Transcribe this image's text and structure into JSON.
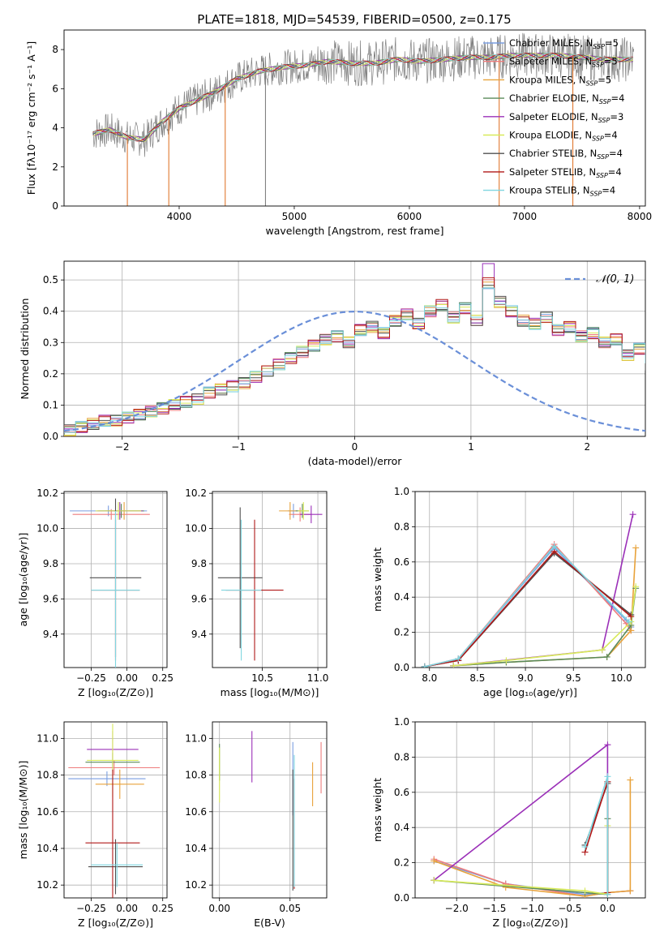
{
  "figure": {
    "title": "PLATE=1818, MJD=54539, FIBERID=0500, z=0.175"
  },
  "colors": {
    "Chabrier MILES": "#7a9ee0",
    "Salpeter MILES": "#ee7c7c",
    "Kroupa MILES": "#e8a23a",
    "Chabrier ELODIE": "#5a8a5a",
    "Salpeter ELODIE": "#9b30b8",
    "Kroupa ELODIE": "#d8ea5a",
    "Chabrier STELIB": "#505050",
    "Salpeter STELIB": "#b01818",
    "Kroupa STELIB": "#7fd6e0",
    "data": "#808080",
    "normal": "#6a8fd8",
    "orange_fit": "#e07830"
  },
  "legend": {
    "spectrum": [
      {
        "label": "Chabrier MILES, N",
        "sub": "SSP",
        "eq": "=5"
      },
      {
        "label": "Salpeter MILES, N",
        "sub": "SSP",
        "eq": "=5"
      },
      {
        "label": "Kroupa MILES, N",
        "sub": "SSP",
        "eq": "=5"
      },
      {
        "label": "Chabrier ELODIE, N",
        "sub": "SSP",
        "eq": "=4"
      },
      {
        "label": "Salpeter ELODIE, N",
        "sub": "SSP",
        "eq": "=3"
      },
      {
        "label": "Kroupa ELODIE, N",
        "sub": "SSP",
        "eq": "=4"
      },
      {
        "label": "Chabrier STELIB, N",
        "sub": "SSP",
        "eq": "=4"
      },
      {
        "label": "Salpeter STELIB, N",
        "sub": "SSP",
        "eq": "=4"
      },
      {
        "label": "Kroupa STELIB, N",
        "sub": "SSP",
        "eq": "=4"
      }
    ],
    "histogram": "𝒩(0, 1)"
  },
  "chart_data": [
    {
      "type": "line",
      "panel": "spectrum",
      "xlabel": "wavelength [Angstrom, rest frame]",
      "ylabel": "Flux [fλ10⁻¹⁷ erg cm⁻² s⁻¹ A⁻¹]",
      "xlim": [
        3000,
        8050
      ],
      "ylim": [
        0,
        9
      ],
      "xticks": [
        4000,
        5000,
        6000,
        7000,
        8000
      ],
      "yticks": [
        0,
        2,
        4,
        6,
        8
      ],
      "model_trend": {
        "x": [
          3250,
          3400,
          3550,
          3700,
          3850,
          4000,
          4150,
          4300,
          4500,
          4700,
          4900,
          5100,
          5300,
          5500,
          5700,
          5900,
          6100,
          6300,
          6500,
          6700,
          6900,
          7100,
          7300,
          7500,
          7700,
          7900
        ],
        "y": [
          3.7,
          3.9,
          3.5,
          3.4,
          4.3,
          5.0,
          5.4,
          5.8,
          6.5,
          6.9,
          7.1,
          7.2,
          7.4,
          7.3,
          7.3,
          7.5,
          7.4,
          7.5,
          7.6,
          7.6,
          7.7,
          7.7,
          7.7,
          7.6,
          7.5,
          7.5
        ]
      },
      "data_noise": 0.9,
      "absorption_lines": [
        3550,
        3910,
        4400,
        4750,
        6780,
        7420
      ]
    },
    {
      "type": "bar",
      "panel": "residual-histogram",
      "xlabel": "(data-model)/error",
      "ylabel": "Normed distribution",
      "xlim": [
        -2.5,
        2.5
      ],
      "ylim": [
        0,
        0.56
      ],
      "xticks": [
        -2,
        -1,
        0,
        1,
        2
      ],
      "yticks": [
        0,
        0.1,
        0.2,
        0.3,
        0.4,
        0.5
      ],
      "bin_width": 0.1,
      "bin_centers_start": -2.45,
      "values": [
        0.02,
        0.03,
        0.04,
        0.05,
        0.05,
        0.06,
        0.07,
        0.08,
        0.09,
        0.1,
        0.11,
        0.12,
        0.14,
        0.15,
        0.16,
        0.17,
        0.19,
        0.21,
        0.23,
        0.25,
        0.27,
        0.29,
        0.31,
        0.32,
        0.3,
        0.34,
        0.35,
        0.33,
        0.37,
        0.39,
        0.36,
        0.4,
        0.42,
        0.38,
        0.41,
        0.37,
        0.49,
        0.43,
        0.4,
        0.37,
        0.36,
        0.38,
        0.34,
        0.35,
        0.32,
        0.33,
        0.3,
        0.31,
        0.26,
        0.28,
        0.23,
        0.21,
        0.2,
        0.18,
        0.16,
        0.16,
        0.14,
        0.12,
        0.1,
        0.09,
        0.08,
        0.07,
        0.06,
        0.05,
        0.05,
        0.04,
        0.04,
        0.03,
        0.03,
        0.03
      ],
      "normal_curve": {
        "mean": 0,
        "sigma": 1
      }
    },
    {
      "type": "scatter",
      "panel": "Z-vs-age",
      "xlabel": "Z [log₁₀(Z/Z⊙)]",
      "ylabel": "age  [log₁₀(age/yr)]",
      "xlim": [
        -0.44,
        0.28
      ],
      "ylim": [
        9.21,
        10.21
      ],
      "xticks": [
        -0.25,
        0.0,
        0.25
      ],
      "yticks": [
        9.4,
        9.6,
        9.8,
        10.0,
        10.2
      ],
      "points": [
        {
          "model": "Chabrier MILES",
          "x": -0.13,
          "xerr": 0.27,
          "y": 10.1,
          "yerr": 0.03
        },
        {
          "model": "Salpeter MILES",
          "x": -0.11,
          "xerr": 0.27,
          "y": 10.08,
          "yerr": 0.03
        },
        {
          "model": "Kroupa MILES",
          "x": -0.02,
          "xerr": 0.13,
          "y": 10.1,
          "yerr": 0.05
        },
        {
          "model": "Chabrier ELODIE",
          "x": -0.04,
          "xerr": 0.16,
          "y": 10.1,
          "yerr": 0.04
        },
        {
          "model": "Salpeter ELODIE",
          "x": -0.05,
          "xerr": 0.16,
          "y": 10.1,
          "yerr": 0.05
        },
        {
          "model": "Kroupa ELODIE",
          "x": -0.06,
          "xerr": 0.16,
          "y": 10.1,
          "yerr": 0.05
        },
        {
          "model": "Chabrier STELIB",
          "x": -0.08,
          "xerr": 0.18,
          "y": 9.72,
          "yerr": 0.45
        },
        {
          "model": "Salpeter STELIB",
          "x": -0.08,
          "xerr": 0.17,
          "y": 9.65,
          "yerr": 0.4
        },
        {
          "model": "Kroupa STELIB",
          "x": -0.08,
          "xerr": 0.17,
          "y": 9.65,
          "yerr": 0.45
        }
      ]
    },
    {
      "type": "scatter",
      "panel": "mass-vs-age",
      "xlabel": "mass [log₁₀(M/M⊙)]",
      "ylabel": "",
      "xlim": [
        10.05,
        11.08
      ],
      "ylim": [
        9.21,
        10.21
      ],
      "xticks": [
        10.5,
        11.0
      ],
      "yticks": [
        9.4,
        9.6,
        9.8,
        10.0,
        10.2
      ],
      "points": [
        {
          "model": "Chabrier MILES",
          "x": 10.78,
          "xerr": 0.05,
          "y": 10.1,
          "yerr": 0.04
        },
        {
          "model": "Salpeter MILES",
          "x": 10.84,
          "xerr": 0.1,
          "y": 10.08,
          "yerr": 0.04
        },
        {
          "model": "Kroupa MILES",
          "x": 10.75,
          "xerr": 0.1,
          "y": 10.1,
          "yerr": 0.05
        },
        {
          "model": "Chabrier ELODIE",
          "x": 10.86,
          "xerr": 0.06,
          "y": 10.1,
          "yerr": 0.04
        },
        {
          "model": "Salpeter ELODIE",
          "x": 10.94,
          "xerr": 0.1,
          "y": 10.08,
          "yerr": 0.05
        },
        {
          "model": "Kroupa ELODIE",
          "x": 10.87,
          "xerr": 0.05,
          "y": 10.1,
          "yerr": 0.05
        },
        {
          "model": "Chabrier STELIB",
          "x": 10.3,
          "xerr": 0.2,
          "y": 9.72,
          "yerr": 0.4
        },
        {
          "model": "Salpeter STELIB",
          "x": 10.43,
          "xerr": 0.26,
          "y": 9.65,
          "yerr": 0.4
        },
        {
          "model": "Kroupa STELIB",
          "x": 10.31,
          "xerr": 0.18,
          "y": 9.65,
          "yerr": 0.4
        }
      ]
    },
    {
      "type": "line",
      "panel": "age-vs-weight",
      "xlabel": "age  [log₁₀(age/yr)]",
      "ylabel": "mass weight",
      "xlim": [
        7.85,
        10.25
      ],
      "ylim": [
        0,
        1.0
      ],
      "xticks": [
        8.0,
        8.5,
        9.0,
        9.5,
        10.0
      ],
      "yticks": [
        0.0,
        0.2,
        0.4,
        0.6,
        0.8,
        1.0
      ],
      "series": [
        {
          "model": "Chabrier MILES",
          "x": [
            7.95,
            8.3,
            9.3,
            10.05,
            10.1
          ],
          "y": [
            0.005,
            0.05,
            0.68,
            0.27,
            0.23
          ]
        },
        {
          "model": "Salpeter MILES",
          "x": [
            7.95,
            8.3,
            9.3,
            10.05,
            10.1
          ],
          "y": [
            0.005,
            0.05,
            0.7,
            0.25,
            0.21
          ]
        },
        {
          "model": "Kroupa MILES",
          "x": [
            8.25,
            8.8,
            9.85,
            10.1,
            10.15
          ],
          "y": [
            0.01,
            0.03,
            0.06,
            0.21,
            0.68
          ]
        },
        {
          "model": "Chabrier ELODIE",
          "x": [
            8.25,
            8.8,
            9.85,
            10.1,
            10.15
          ],
          "y": [
            0.01,
            0.03,
            0.06,
            0.24,
            0.45
          ]
        },
        {
          "model": "Salpeter ELODIE",
          "x": [
            8.25,
            9.8,
            10.12
          ],
          "y": [
            0.01,
            0.1,
            0.87
          ]
        },
        {
          "model": "Kroupa ELODIE",
          "x": [
            8.25,
            8.8,
            9.8,
            10.1,
            10.15
          ],
          "y": [
            0.01,
            0.04,
            0.1,
            0.26,
            0.46
          ]
        },
        {
          "model": "Chabrier STELIB",
          "x": [
            7.95,
            8.3,
            9.3,
            10.1
          ],
          "y": [
            0.005,
            0.04,
            0.65,
            0.3
          ]
        },
        {
          "model": "Salpeter STELIB",
          "x": [
            7.95,
            8.3,
            9.3,
            10.1
          ],
          "y": [
            0.005,
            0.04,
            0.66,
            0.29
          ]
        },
        {
          "model": "Kroupa STELIB",
          "x": [
            7.95,
            8.3,
            9.3,
            10.08
          ],
          "y": [
            0.005,
            0.05,
            0.69,
            0.26
          ]
        }
      ]
    },
    {
      "type": "scatter",
      "panel": "Z-vs-mass",
      "xlabel": "Z [log₁₀(Z/Z⊙)]",
      "ylabel": "mass [log₁₀(M/M⊙)]",
      "xlim": [
        -0.44,
        0.28
      ],
      "ylim": [
        10.13,
        11.09
      ],
      "xticks": [
        -0.25,
        0.0,
        0.25
      ],
      "yticks": [
        10.2,
        10.4,
        10.6,
        10.8,
        11.0
      ],
      "points": [
        {
          "model": "Chabrier MILES",
          "x": -0.14,
          "xerr": 0.27,
          "y": 10.78,
          "yerr": 0.04
        },
        {
          "model": "Salpeter MILES",
          "x": -0.09,
          "xerr": 0.32,
          "y": 10.84,
          "yerr": 0.04
        },
        {
          "model": "Kroupa MILES",
          "x": -0.05,
          "xerr": 0.17,
          "y": 10.75,
          "yerr": 0.08
        },
        {
          "model": "Chabrier ELODIE",
          "x": -0.1,
          "xerr": 0.19,
          "y": 10.87,
          "yerr": 0.05
        },
        {
          "model": "Salpeter ELODIE",
          "x": -0.1,
          "xerr": 0.18,
          "y": 10.94,
          "yerr": 0.1
        },
        {
          "model": "Kroupa ELODIE",
          "x": -0.1,
          "xerr": 0.18,
          "y": 10.88,
          "yerr": 0.2
        },
        {
          "model": "Chabrier STELIB",
          "x": -0.08,
          "xerr": 0.19,
          "y": 10.3,
          "yerr": 0.15
        },
        {
          "model": "Salpeter STELIB",
          "x": -0.1,
          "xerr": 0.19,
          "y": 10.43,
          "yerr": 0.4
        },
        {
          "model": "Kroupa STELIB",
          "x": -0.07,
          "xerr": 0.18,
          "y": 10.31,
          "yerr": 0.12
        }
      ]
    },
    {
      "type": "scatter",
      "panel": "ebv-vs-mass",
      "xlabel": "E(B-V)",
      "ylabel": "",
      "xlim": [
        -0.005,
        0.076
      ],
      "ylim": [
        10.13,
        11.09
      ],
      "xticks": [
        0.0,
        0.05
      ],
      "yticks": [
        10.2,
        10.4,
        10.6,
        10.8,
        11.0
      ],
      "points": [
        {
          "model": "Chabrier MILES",
          "x": 0.052,
          "y": 10.78,
          "yerr": 0.2
        },
        {
          "model": "Salpeter MILES",
          "x": 0.072,
          "y": 10.84,
          "yerr": 0.14
        },
        {
          "model": "Kroupa MILES",
          "x": 0.066,
          "y": 10.75,
          "yerr": 0.12
        },
        {
          "model": "Chabrier ELODIE",
          "x": 0.0,
          "y": 10.87,
          "yerr": 0.1
        },
        {
          "model": "Salpeter ELODIE",
          "x": 0.023,
          "y": 10.9,
          "yerr": 0.14
        },
        {
          "model": "Kroupa ELODIE",
          "x": 0.0,
          "y": 10.8,
          "yerr": 0.15
        },
        {
          "model": "Chabrier STELIB",
          "x": 0.052,
          "y": 10.5,
          "yerr": 0.33
        },
        {
          "model": "Salpeter STELIB",
          "x": 0.053,
          "y": 10.48,
          "yerr": 0.3
        },
        {
          "model": "Kroupa STELIB",
          "x": 0.053,
          "y": 10.55,
          "yerr": 0.36
        }
      ]
    },
    {
      "type": "line",
      "panel": "Z-vs-weight",
      "xlabel": "Z [log₁₀(Z/Z⊙)]",
      "ylabel": "mass weight",
      "xlim": [
        -2.55,
        0.5
      ],
      "ylim": [
        0,
        1.0
      ],
      "xticks": [
        -2.0,
        -1.5,
        -1.0,
        -0.5,
        0.0
      ],
      "yticks": [
        0.0,
        0.2,
        0.4,
        0.6,
        0.8,
        1.0
      ],
      "series": [
        {
          "model": "Chabrier MILES",
          "x": [
            -2.3,
            -1.35,
            -0.3,
            0.0,
            0.3
          ],
          "y": [
            0.21,
            0.08,
            0.02,
            0.03,
            0.04
          ]
        },
        {
          "model": "Salpeter MILES",
          "x": [
            -2.3,
            -1.35,
            -0.3,
            0.0,
            0.3
          ],
          "y": [
            0.22,
            0.08,
            0.01,
            0.03,
            0.04
          ]
        },
        {
          "model": "Kroupa MILES",
          "x": [
            -2.3,
            -1.35,
            -0.3,
            0.0,
            0.3,
            0.3
          ],
          "y": [
            0.21,
            0.06,
            0.01,
            0.03,
            0.04,
            0.67
          ]
        },
        {
          "model": "Chabrier ELODIE",
          "x": [
            -2.3,
            -0.3,
            0.0,
            0.0
          ],
          "y": [
            0.1,
            0.03,
            0.02,
            0.45
          ]
        },
        {
          "model": "Salpeter ELODIE",
          "x": [
            -2.3,
            0.0,
            0.0
          ],
          "y": [
            0.1,
            0.87,
            0.02
          ]
        },
        {
          "model": "Kroupa ELODIE",
          "x": [
            -2.3,
            -0.3,
            0.0,
            0.0
          ],
          "y": [
            0.1,
            0.04,
            0.02,
            0.41
          ]
        },
        {
          "model": "Chabrier STELIB",
          "x": [
            -0.3,
            0.0,
            0.0
          ],
          "y": [
            0.3,
            0.65,
            0.03
          ]
        },
        {
          "model": "Salpeter STELIB",
          "x": [
            -0.3,
            0.0,
            0.0
          ],
          "y": [
            0.26,
            0.66,
            0.03
          ]
        },
        {
          "model": "Kroupa STELIB",
          "x": [
            -0.3,
            0.0,
            0.0
          ],
          "y": [
            0.29,
            0.69,
            0.02
          ]
        }
      ]
    }
  ]
}
